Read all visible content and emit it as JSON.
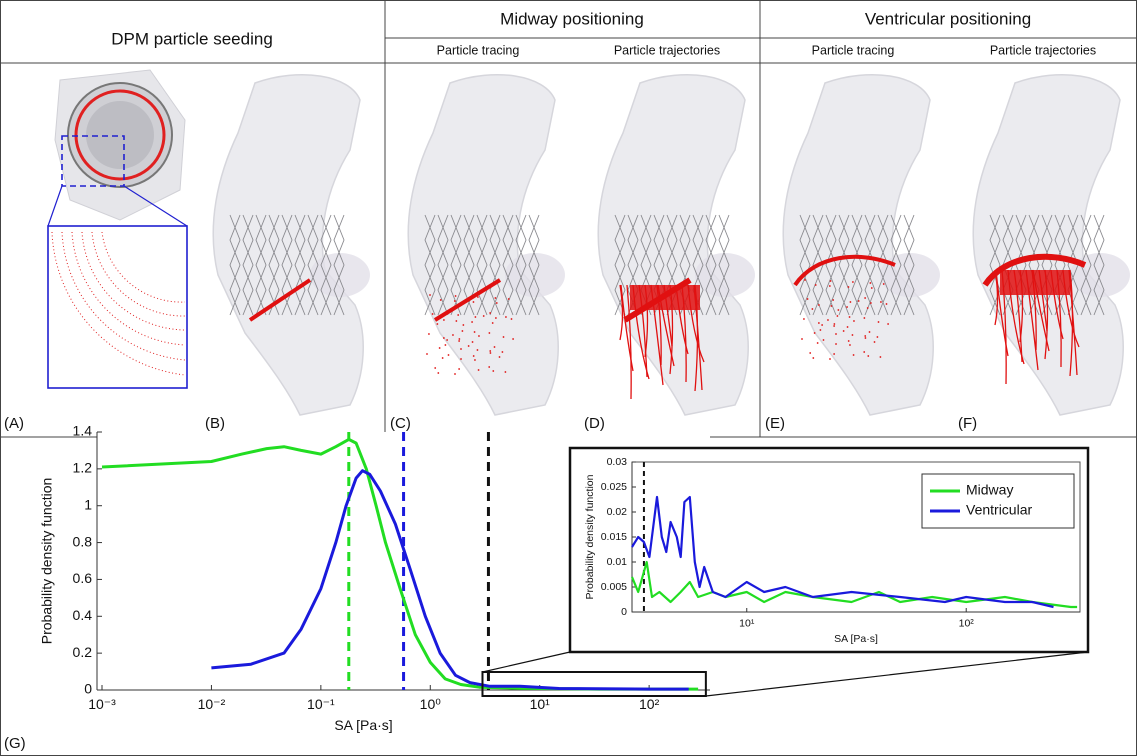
{
  "header": {
    "columns": [
      {
        "title": "DPM particle seeding"
      },
      {
        "title": "Midway positioning",
        "subtitles": [
          "Particle tracing",
          "Particle trajectories"
        ]
      },
      {
        "title": "Ventricular positioning",
        "subtitles": [
          "Particle tracing",
          "Particle trajectories"
        ]
      }
    ]
  },
  "panels": [
    "(A)",
    "(B)",
    "(C)",
    "(D)",
    "(E)",
    "(F)",
    "(G)"
  ],
  "chart_data": [
    {
      "type": "line",
      "x_scale": "log",
      "x_label": "SA [Pa·s]",
      "y_label": "Probability density function",
      "xlim": [
        0.0009,
        360
      ],
      "ylim": [
        0,
        1.4
      ],
      "xticks": [
        {
          "value": 0.001,
          "label": "10⁻³"
        },
        {
          "value": 0.01,
          "label": "10⁻²"
        },
        {
          "value": 0.1,
          "label": "10⁻¹"
        },
        {
          "value": 1,
          "label": "10⁰"
        },
        {
          "value": 10,
          "label": "10¹"
        },
        {
          "value": 100,
          "label": "10²"
        }
      ],
      "yticks": [
        0,
        0.2,
        0.4,
        0.6,
        0.8,
        1,
        1.2,
        1.4
      ],
      "series": [
        {
          "color": "#22dd22",
          "x": [
            0.001,
            0.01,
            0.019,
            0.032,
            0.046,
            0.066,
            0.1,
            0.137,
            0.18,
            0.21,
            0.26,
            0.32,
            0.39,
            0.53,
            0.73,
            1,
            1.37,
            1.9,
            2.8,
            6.6,
            35,
            280
          ],
          "values": [
            1.21,
            1.24,
            1.28,
            1.31,
            1.32,
            1.3,
            1.28,
            1.32,
            1.36,
            1.34,
            1.2,
            1,
            0.8,
            0.55,
            0.3,
            0.15,
            0.06,
            0.03,
            0.015,
            0.01,
            0.005,
            0.005
          ]
        },
        {
          "color": "#1a1adc",
          "x": [
            0.01,
            0.023,
            0.046,
            0.066,
            0.1,
            0.137,
            0.17,
            0.21,
            0.24,
            0.28,
            0.35,
            0.48,
            0.66,
            0.9,
            1.23,
            1.7,
            2.3,
            3.5,
            6.6,
            15,
            100,
            230
          ],
          "values": [
            0.12,
            0.14,
            0.2,
            0.33,
            0.55,
            0.8,
            1,
            1.15,
            1.19,
            1.17,
            1.08,
            0.9,
            0.65,
            0.4,
            0.2,
            0.08,
            0.04,
            0.02,
            0.02,
            0.008,
            0.005,
            0.005
          ]
        }
      ],
      "vlines": [
        {
          "x": 0.18,
          "color": "#22dd22"
        },
        {
          "x": 0.57,
          "color": "#1a1adc"
        },
        {
          "x": 3.4,
          "color": "#111111"
        }
      ]
    },
    {
      "type": "line",
      "x_scale": "log",
      "x_label": "SA [Pa·s]",
      "y_label": "Probability density function",
      "xlim": [
        3,
        330
      ],
      "ylim": [
        0,
        0.03
      ],
      "xticks": [
        {
          "value": 10,
          "label": "10¹"
        },
        {
          "value": 100,
          "label": "10²"
        }
      ],
      "yticks": [
        0,
        0.005,
        0.01,
        0.015,
        0.02,
        0.025,
        0.03
      ],
      "legend": "upper right",
      "series": [
        {
          "name": "Midway",
          "color": "#22dd22",
          "x": [
            3,
            3.2,
            3.5,
            3.7,
            4,
            4.5,
            5,
            5.5,
            6,
            7,
            8,
            10,
            12,
            15,
            20,
            30,
            40,
            50,
            70,
            100,
            150,
            200,
            300,
            320
          ],
          "values": [
            0.007,
            0.004,
            0.01,
            0.003,
            0.004,
            0.002,
            0.004,
            0.006,
            0.003,
            0.004,
            0.003,
            0.004,
            0.002,
            0.004,
            0.003,
            0.002,
            0.004,
            0.002,
            0.003,
            0.002,
            0.003,
            0.002,
            0.001,
            0.001
          ]
        },
        {
          "name": "Ventricular",
          "color": "#1a1adc",
          "x": [
            3,
            3.2,
            3.4,
            3.6,
            3.9,
            4.1,
            4.3,
            4.5,
            4.8,
            5,
            5.2,
            5.5,
            5.8,
            6.1,
            6.4,
            7,
            8,
            10,
            12,
            15,
            20,
            30,
            50,
            80,
            100,
            150,
            200,
            250
          ],
          "values": [
            0.013,
            0.015,
            0.014,
            0.011,
            0.023,
            0.015,
            0.012,
            0.018,
            0.015,
            0.011,
            0.022,
            0.023,
            0.01,
            0.005,
            0.009,
            0.004,
            0.003,
            0.006,
            0.004,
            0.005,
            0.003,
            0.004,
            0.003,
            0.002,
            0.003,
            0.002,
            0.002,
            0.001
          ]
        }
      ],
      "vlines": [
        {
          "x": 3.4,
          "color": "#111111"
        }
      ]
    }
  ]
}
